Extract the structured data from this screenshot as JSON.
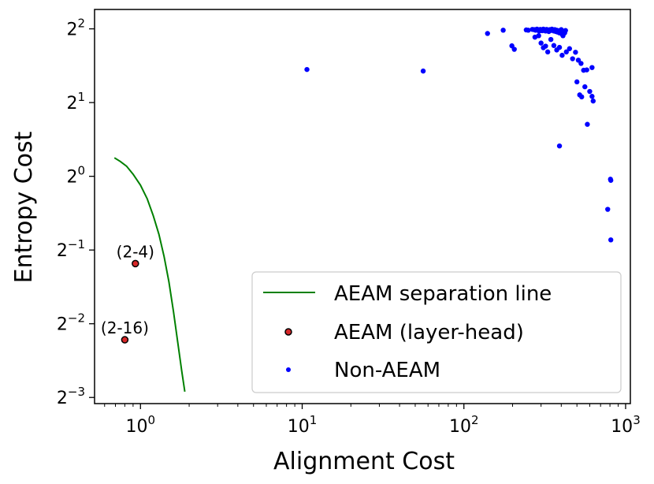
{
  "chart_data": {
    "type": "scatter",
    "xlabel": "Alignment Cost",
    "ylabel": "Entropy Cost",
    "xscale": "log10",
    "yscale": "log2",
    "xlim": [
      0.52,
      1070
    ],
    "ylim": [
      0.118,
      4.8
    ],
    "grid": false,
    "legend_placement": "lower-right",
    "x_ticks": [
      {
        "value": 1,
        "base": "10",
        "exp": "0"
      },
      {
        "value": 10,
        "base": "10",
        "exp": "1"
      },
      {
        "value": 100,
        "base": "10",
        "exp": "2"
      },
      {
        "value": 1000,
        "base": "10",
        "exp": "3"
      }
    ],
    "y_ticks": [
      {
        "value": 0.125,
        "base": "2",
        "exp": "−3"
      },
      {
        "value": 0.25,
        "base": "2",
        "exp": "−2"
      },
      {
        "value": 0.5,
        "base": "2",
        "exp": "−1"
      },
      {
        "value": 1,
        "base": "2",
        "exp": "0"
      },
      {
        "value": 2,
        "base": "2",
        "exp": "1"
      },
      {
        "value": 4,
        "base": "2",
        "exp": "2"
      }
    ],
    "series": [
      {
        "name": "AEAM separation line",
        "kind": "line",
        "color": "#008000",
        "points": [
          [
            0.69,
            1.19
          ],
          [
            0.75,
            1.15
          ],
          [
            0.82,
            1.1
          ],
          [
            0.9,
            1.02
          ],
          [
            1.0,
            0.92
          ],
          [
            1.1,
            0.81
          ],
          [
            1.2,
            0.69
          ],
          [
            1.3,
            0.58
          ],
          [
            1.4,
            0.47
          ],
          [
            1.5,
            0.37
          ],
          [
            1.6,
            0.28
          ],
          [
            1.7,
            0.21
          ],
          [
            1.8,
            0.16
          ],
          [
            1.88,
            0.132
          ]
        ]
      },
      {
        "name": "AEAM (layer-head)",
        "kind": "marker",
        "color": "#d62728",
        "edge_color": "#000000",
        "points": [
          {
            "x": 0.93,
            "y": 0.44,
            "label": "(2-4)"
          },
          {
            "x": 0.8,
            "y": 0.215,
            "label": "(2-16)"
          }
        ]
      },
      {
        "name": "Non-AEAM",
        "kind": "marker",
        "color": "#0000ff",
        "points": [
          [
            10.7,
            2.73
          ],
          [
            56,
            2.69
          ],
          [
            140,
            3.83
          ],
          [
            175,
            3.95
          ],
          [
            198,
            3.41
          ],
          [
            205,
            3.3
          ],
          [
            243,
            3.96
          ],
          [
            250,
            3.95
          ],
          [
            265,
            3.98
          ],
          [
            272,
            3.97
          ],
          [
            278,
            3.95
          ],
          [
            283,
            3.99
          ],
          [
            288,
            3.96
          ],
          [
            292,
            3.92
          ],
          [
            297,
            3.98
          ],
          [
            301,
            3.95
          ],
          [
            305,
            3.93
          ],
          [
            310,
            3.99
          ],
          [
            315,
            3.97
          ],
          [
            320,
            3.92
          ],
          [
            325,
            3.98
          ],
          [
            330,
            3.95
          ],
          [
            335,
            3.9
          ],
          [
            340,
            3.97
          ],
          [
            345,
            3.94
          ],
          [
            350,
            3.99
          ],
          [
            355,
            3.96
          ],
          [
            360,
            3.92
          ],
          [
            365,
            3.97
          ],
          [
            370,
            3.9
          ],
          [
            375,
            3.95
          ],
          [
            380,
            3.88
          ],
          [
            385,
            3.93
          ],
          [
            390,
            3.85
          ],
          [
            395,
            3.92
          ],
          [
            400,
            3.97
          ],
          [
            405,
            3.8
          ],
          [
            410,
            3.75
          ],
          [
            415,
            3.9
          ],
          [
            420,
            3.85
          ],
          [
            425,
            3.94
          ],
          [
            275,
            3.7
          ],
          [
            290,
            3.75
          ],
          [
            300,
            3.5
          ],
          [
            310,
            3.35
          ],
          [
            320,
            3.4
          ],
          [
            330,
            3.22
          ],
          [
            345,
            3.62
          ],
          [
            360,
            3.42
          ],
          [
            375,
            3.28
          ],
          [
            390,
            3.36
          ],
          [
            405,
            3.12
          ],
          [
            430,
            3.22
          ],
          [
            450,
            3.32
          ],
          [
            470,
            3.02
          ],
          [
            490,
            3.21
          ],
          [
            510,
            2.98
          ],
          [
            530,
            2.89
          ],
          [
            550,
            2.71
          ],
          [
            575,
            2.72
          ],
          [
            620,
            2.78
          ],
          [
            500,
            2.43
          ],
          [
            520,
            2.15
          ],
          [
            535,
            2.11
          ],
          [
            560,
            2.32
          ],
          [
            600,
            2.22
          ],
          [
            620,
            2.12
          ],
          [
            630,
            2.03
          ],
          [
            580,
            1.63
          ],
          [
            390,
            1.33
          ],
          [
            806,
            0.973
          ],
          [
            810,
            0.963
          ],
          [
            775,
            0.733
          ],
          [
            810,
            0.55
          ]
        ]
      }
    ],
    "annotations": [
      "(2-4)",
      "(2-16)"
    ]
  }
}
